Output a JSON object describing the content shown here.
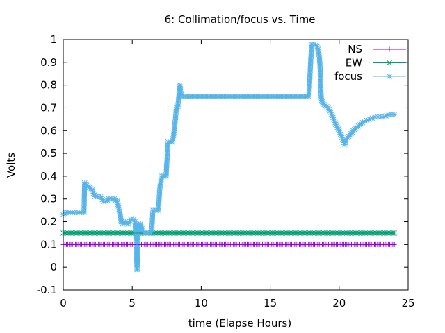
{
  "chart_data": {
    "type": "line",
    "title": "6: Collimation/focus vs. Time",
    "xlabel": "time (Elapse Hours)",
    "ylabel": "Volts",
    "xlim": [
      0,
      25
    ],
    "ylim": [
      -0.1,
      1
    ],
    "xticks": [
      0,
      5,
      10,
      15,
      20,
      25
    ],
    "xtick_labels": [
      "0",
      "5",
      "10",
      "15",
      "20",
      "25"
    ],
    "yticks": [
      -0.1,
      0,
      0.1,
      0.2,
      0.3,
      0.4,
      0.5,
      0.6,
      0.7,
      0.8,
      0.9,
      1
    ],
    "ytick_labels": [
      "-0.1",
      "0",
      "0.1",
      "0.2",
      "0.3",
      "0.4",
      "0.5",
      "0.6",
      "0.7",
      "0.8",
      "0.9",
      "1"
    ],
    "grid": false,
    "legend_position": "top-right",
    "series": [
      {
        "name": "NS",
        "color": "#9400d3",
        "marker": "plus",
        "x": [
          0,
          24
        ],
        "y": [
          0.1,
          0.1
        ]
      },
      {
        "name": "EW",
        "color": "#009e73",
        "marker": "cross",
        "x": [
          0,
          24
        ],
        "y": [
          0.15,
          0.15
        ]
      },
      {
        "name": "focus",
        "color": "#56b4e9",
        "marker": "star",
        "x": [
          0,
          0.2,
          0.5,
          0.8,
          1.0,
          1.3,
          1.5,
          1.55,
          1.7,
          1.9,
          2.1,
          2.3,
          2.5,
          2.7,
          2.9,
          3.1,
          3.3,
          3.5,
          3.7,
          3.9,
          4.1,
          4.2,
          4.3,
          4.5,
          4.7,
          4.9,
          5.1,
          5.2,
          5.25,
          5.35,
          5.45,
          5.6,
          5.8,
          6.0,
          6.2,
          6.4,
          6.5,
          6.7,
          6.9,
          7.0,
          7.15,
          7.3,
          7.45,
          7.6,
          7.75,
          7.9,
          8.05,
          8.2,
          8.3,
          8.45,
          8.55,
          8.7,
          9,
          10,
          11,
          12,
          13,
          14,
          15,
          16,
          17,
          17.8,
          18.0,
          18.2,
          18.4,
          18.5,
          18.6,
          18.7,
          18.8,
          19.0,
          19.2,
          19.4,
          19.6,
          19.8,
          20.0,
          20.2,
          20.4,
          20.5,
          20.6,
          20.8,
          21.0,
          21.2,
          21.4,
          21.6,
          21.8,
          22.0,
          22.2,
          22.4,
          22.6,
          22.8,
          23.0,
          23.2,
          23.4,
          23.6,
          23.8,
          24.0
        ],
        "y": [
          0.23,
          0.24,
          0.24,
          0.24,
          0.24,
          0.24,
          0.24,
          0.37,
          0.36,
          0.35,
          0.34,
          0.31,
          0.31,
          0.31,
          0.29,
          0.29,
          0.3,
          0.3,
          0.3,
          0.29,
          0.24,
          0.2,
          0.19,
          0.2,
          0.19,
          0.21,
          0.21,
          0.2,
          0.15,
          -0.01,
          0.19,
          0.19,
          0.15,
          0.15,
          0.15,
          0.15,
          0.25,
          0.25,
          0.25,
          0.35,
          0.4,
          0.4,
          0.4,
          0.55,
          0.55,
          0.55,
          0.6,
          0.7,
          0.7,
          0.8,
          0.75,
          0.75,
          0.75,
          0.75,
          0.75,
          0.75,
          0.75,
          0.75,
          0.75,
          0.75,
          0.75,
          0.75,
          0.98,
          0.98,
          0.97,
          0.95,
          0.9,
          0.74,
          0.72,
          0.71,
          0.7,
          0.68,
          0.65,
          0.62,
          0.6,
          0.57,
          0.54,
          0.56,
          0.57,
          0.58,
          0.6,
          0.61,
          0.62,
          0.63,
          0.64,
          0.645,
          0.65,
          0.655,
          0.66,
          0.66,
          0.66,
          0.66,
          0.665,
          0.67,
          0.67,
          0.67
        ]
      }
    ]
  }
}
